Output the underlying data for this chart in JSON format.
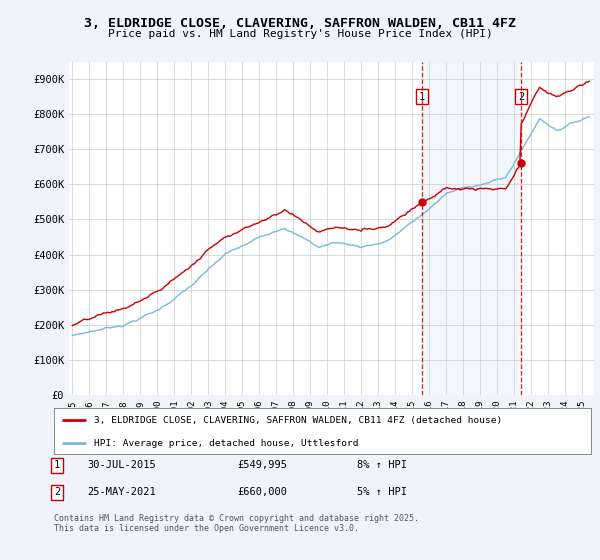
{
  "title": "3, ELDRIDGE CLOSE, CLAVERING, SAFFRON WALDEN, CB11 4FZ",
  "subtitle": "Price paid vs. HM Land Registry's House Price Index (HPI)",
  "ylabel_ticks": [
    "£0",
    "£100K",
    "£200K",
    "£300K",
    "£400K",
    "£500K",
    "£600K",
    "£700K",
    "£800K",
    "£900K"
  ],
  "ytick_values": [
    0,
    100000,
    200000,
    300000,
    400000,
    500000,
    600000,
    700000,
    800000,
    900000
  ],
  "ylim": [
    0,
    950000
  ],
  "xlim_start": 1994.8,
  "xlim_end": 2025.7,
  "hpi_color": "#7ab8de",
  "hpi_fill_color": "#d0e8f5",
  "price_color": "#cc0000",
  "sale1_date": 2015.57,
  "sale1_price": 549995,
  "sale1_label": "1",
  "sale2_date": 2021.4,
  "sale2_price": 660000,
  "sale2_label": "2",
  "legend_line1": "3, ELDRIDGE CLOSE, CLAVERING, SAFFRON WALDEN, CB11 4FZ (detached house)",
  "legend_line2": "HPI: Average price, detached house, Uttlesford",
  "footer": "Contains HM Land Registry data © Crown copyright and database right 2025.\nThis data is licensed under the Open Government Licence v3.0.",
  "background_color": "#f0f4fa",
  "plot_bg_color": "#ffffff",
  "grid_color": "#cccccc",
  "shade_color": "#daeaf5"
}
